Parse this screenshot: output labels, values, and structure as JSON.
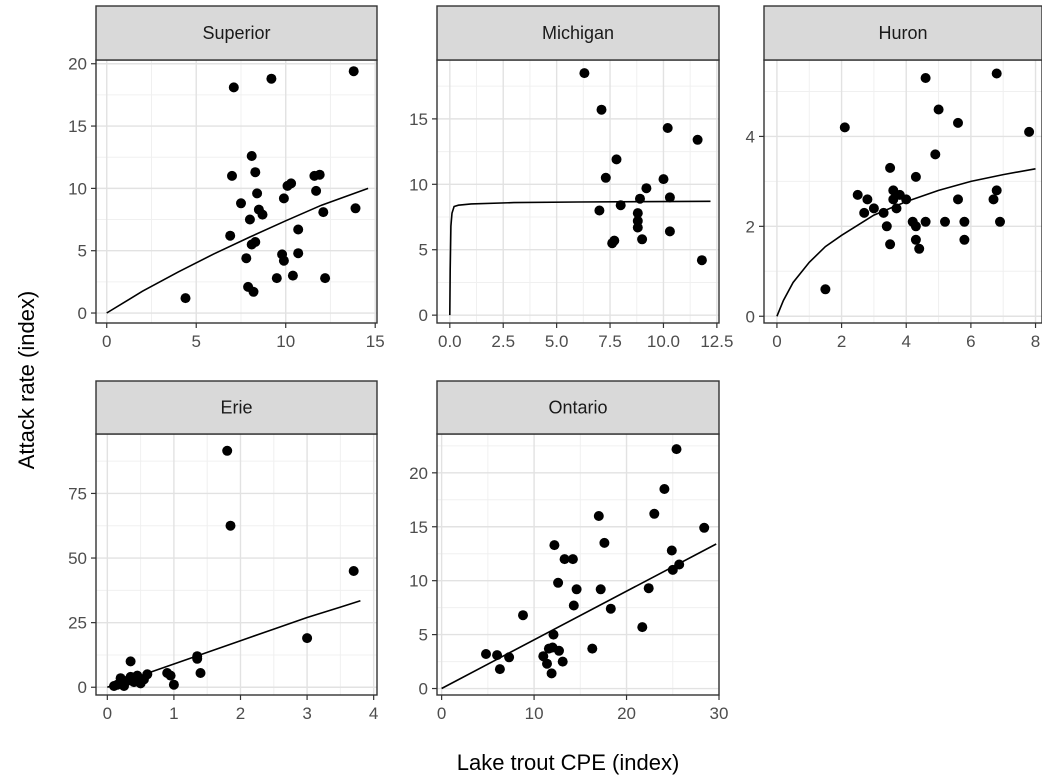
{
  "chart_data": {
    "type": "scatter",
    "layout": "facet-wrap",
    "xlabel": "Lake trout CPE (index)",
    "ylabel": "Attack rate (index)",
    "panels": [
      {
        "name": "Superior",
        "xlim": [
          -0.6,
          15.1
        ],
        "ylim": [
          -0.8,
          20.3
        ],
        "xticks": [
          {
            "v": 0,
            "label": "0"
          },
          {
            "v": 5,
            "label": "5"
          },
          {
            "v": 10,
            "label": "10"
          },
          {
            "v": 15,
            "label": "15"
          }
        ],
        "yticks": [
          {
            "v": 0,
            "label": "0"
          },
          {
            "v": 5,
            "label": "5"
          },
          {
            "v": 10,
            "label": "10"
          },
          {
            "v": 15,
            "label": "15"
          },
          {
            "v": 20,
            "label": "20"
          }
        ],
        "points": [
          [
            4.4,
            1.2
          ],
          [
            6.9,
            6.2
          ],
          [
            7.0,
            11.0
          ],
          [
            7.1,
            18.1
          ],
          [
            7.5,
            8.8
          ],
          [
            7.8,
            4.4
          ],
          [
            7.9,
            2.1
          ],
          [
            8.0,
            7.5
          ],
          [
            8.1,
            12.6
          ],
          [
            8.1,
            5.5
          ],
          [
            8.2,
            1.7
          ],
          [
            8.3,
            11.3
          ],
          [
            8.3,
            5.7
          ],
          [
            8.4,
            9.6
          ],
          [
            8.5,
            8.3
          ],
          [
            8.7,
            7.9
          ],
          [
            9.2,
            18.8
          ],
          [
            9.5,
            2.8
          ],
          [
            9.8,
            4.7
          ],
          [
            9.9,
            4.2
          ],
          [
            9.9,
            9.2
          ],
          [
            10.1,
            10.2
          ],
          [
            10.3,
            10.4
          ],
          [
            10.4,
            3.0
          ],
          [
            10.7,
            6.7
          ],
          [
            10.7,
            4.8
          ],
          [
            11.6,
            11.0
          ],
          [
            11.7,
            9.8
          ],
          [
            11.9,
            11.1
          ],
          [
            12.1,
            8.1
          ],
          [
            12.2,
            2.8
          ],
          [
            13.8,
            19.4
          ],
          [
            13.9,
            8.4
          ]
        ],
        "curve": [
          [
            0,
            0
          ],
          [
            2,
            1.75
          ],
          [
            4,
            3.3
          ],
          [
            6,
            4.75
          ],
          [
            8,
            6.1
          ],
          [
            10,
            7.4
          ],
          [
            12,
            8.65
          ],
          [
            14.6,
            10.0
          ]
        ]
      },
      {
        "name": "Michigan",
        "xlim": [
          -0.6,
          12.6
        ],
        "ylim": [
          -0.6,
          19.5
        ],
        "xticks": [
          {
            "v": 0,
            "label": "0.0"
          },
          {
            "v": 2.5,
            "label": "2.5"
          },
          {
            "v": 5,
            "label": "5.0"
          },
          {
            "v": 7.5,
            "label": "7.5"
          },
          {
            "v": 10,
            "label": "10.0"
          },
          {
            "v": 12.5,
            "label": "12.5"
          }
        ],
        "yticks": [
          {
            "v": 0,
            "label": "0"
          },
          {
            "v": 5,
            "label": "5"
          },
          {
            "v": 10,
            "label": "10"
          },
          {
            "v": 15,
            "label": "15"
          }
        ],
        "points": [
          [
            6.3,
            18.5
          ],
          [
            7.0,
            8.0
          ],
          [
            7.1,
            15.7
          ],
          [
            7.3,
            10.5
          ],
          [
            7.6,
            5.5
          ],
          [
            7.7,
            5.7
          ],
          [
            7.8,
            11.9
          ],
          [
            8.0,
            8.4
          ],
          [
            8.8,
            7.2
          ],
          [
            8.8,
            6.7
          ],
          [
            8.8,
            7.8
          ],
          [
            8.9,
            8.9
          ],
          [
            9.0,
            5.8
          ],
          [
            9.2,
            9.7
          ],
          [
            10.0,
            10.4
          ],
          [
            10.2,
            14.3
          ],
          [
            10.3,
            9.0
          ],
          [
            10.3,
            6.4
          ],
          [
            11.6,
            13.4
          ],
          [
            11.8,
            4.2
          ]
        ],
        "curve": [
          [
            0,
            0
          ],
          [
            0.02,
            3.5
          ],
          [
            0.05,
            6.8
          ],
          [
            0.1,
            7.8
          ],
          [
            0.2,
            8.3
          ],
          [
            0.4,
            8.4
          ],
          [
            1.0,
            8.5
          ],
          [
            3.0,
            8.6
          ],
          [
            6.0,
            8.65
          ],
          [
            12.2,
            8.7
          ]
        ]
      },
      {
        "name": "Huron",
        "xlim": [
          -0.4,
          8.2
        ],
        "ylim": [
          -0.15,
          5.7
        ],
        "xticks": [
          {
            "v": 0,
            "label": "0"
          },
          {
            "v": 2,
            "label": "2"
          },
          {
            "v": 4,
            "label": "4"
          },
          {
            "v": 6,
            "label": "6"
          },
          {
            "v": 8,
            "label": "8"
          }
        ],
        "yticks": [
          {
            "v": 0,
            "label": "0"
          },
          {
            "v": 2,
            "label": "2"
          },
          {
            "v": 4,
            "label": "4"
          }
        ],
        "points": [
          [
            1.5,
            0.6
          ],
          [
            2.1,
            4.2
          ],
          [
            2.5,
            2.7
          ],
          [
            2.7,
            2.3
          ],
          [
            2.8,
            2.6
          ],
          [
            3.0,
            2.4
          ],
          [
            3.3,
            2.3
          ],
          [
            3.4,
            2.0
          ],
          [
            3.5,
            3.3
          ],
          [
            3.5,
            1.6
          ],
          [
            3.6,
            2.8
          ],
          [
            3.6,
            2.6
          ],
          [
            3.7,
            2.4
          ],
          [
            3.8,
            2.7
          ],
          [
            4.0,
            2.6
          ],
          [
            4.2,
            2.1
          ],
          [
            4.3,
            2.0
          ],
          [
            4.3,
            1.7
          ],
          [
            4.3,
            3.1
          ],
          [
            4.4,
            1.5
          ],
          [
            4.6,
            5.3
          ],
          [
            4.6,
            2.1
          ],
          [
            4.9,
            3.6
          ],
          [
            5.0,
            4.6
          ],
          [
            5.2,
            2.1
          ],
          [
            5.6,
            4.3
          ],
          [
            5.6,
            2.6
          ],
          [
            5.8,
            1.7
          ],
          [
            5.8,
            2.1
          ],
          [
            6.7,
            2.6
          ],
          [
            6.8,
            5.4
          ],
          [
            6.8,
            2.8
          ],
          [
            6.9,
            2.1
          ],
          [
            7.8,
            4.1
          ]
        ],
        "curve": [
          [
            0,
            0
          ],
          [
            0.2,
            0.35
          ],
          [
            0.5,
            0.75
          ],
          [
            1,
            1.2
          ],
          [
            1.5,
            1.55
          ],
          [
            2,
            1.8
          ],
          [
            3,
            2.25
          ],
          [
            4,
            2.55
          ],
          [
            5,
            2.8
          ],
          [
            6,
            3.0
          ],
          [
            7,
            3.15
          ],
          [
            8,
            3.28
          ]
        ]
      },
      {
        "name": "Erie",
        "xlim": [
          -0.17,
          4.05
        ],
        "ylim": [
          -3.0,
          98.0
        ],
        "xticks": [
          {
            "v": 0,
            "label": "0"
          },
          {
            "v": 1,
            "label": "1"
          },
          {
            "v": 2,
            "label": "2"
          },
          {
            "v": 3,
            "label": "3"
          },
          {
            "v": 4,
            "label": "4"
          }
        ],
        "yticks": [
          {
            "v": 0,
            "label": "0"
          },
          {
            "v": 25,
            "label": "25"
          },
          {
            "v": 50,
            "label": "50"
          },
          {
            "v": 75,
            "label": "75"
          }
        ],
        "points": [
          [
            0.1,
            0.5
          ],
          [
            0.15,
            1.0
          ],
          [
            0.2,
            3.5
          ],
          [
            0.25,
            0.5
          ],
          [
            0.3,
            2.5
          ],
          [
            0.35,
            4.0
          ],
          [
            0.35,
            10.0
          ],
          [
            0.4,
            2.0
          ],
          [
            0.45,
            4.5
          ],
          [
            0.5,
            1.5
          ],
          [
            0.55,
            3.0
          ],
          [
            0.6,
            5.0
          ],
          [
            0.9,
            5.5
          ],
          [
            0.95,
            4.5
          ],
          [
            1.0,
            1.0
          ],
          [
            1.35,
            12.0
          ],
          [
            1.35,
            11.0
          ],
          [
            1.4,
            5.5
          ],
          [
            1.8,
            91.5
          ],
          [
            1.85,
            62.5
          ],
          [
            3.0,
            19.0
          ],
          [
            3.7,
            45.0
          ]
        ],
        "curve": [
          [
            0,
            0
          ],
          [
            0.5,
            4.5
          ],
          [
            1,
            9
          ],
          [
            1.5,
            13.5
          ],
          [
            2,
            18
          ],
          [
            2.5,
            22.5
          ],
          [
            3,
            27
          ],
          [
            3.5,
            31
          ],
          [
            3.8,
            33.5
          ]
        ]
      },
      {
        "name": "Ontario",
        "xlim": [
          -0.5,
          30.0
        ],
        "ylim": [
          -0.6,
          23.6
        ],
        "xticks": [
          {
            "v": 0,
            "label": "0"
          },
          {
            "v": 10,
            "label": "10"
          },
          {
            "v": 20,
            "label": "20"
          },
          {
            "v": 30,
            "label": "30"
          }
        ],
        "yticks": [
          {
            "v": 0,
            "label": "0"
          },
          {
            "v": 5,
            "label": "5"
          },
          {
            "v": 10,
            "label": "10"
          },
          {
            "v": 15,
            "label": "15"
          },
          {
            "v": 20,
            "label": "20"
          }
        ],
        "points": [
          [
            4.8,
            3.2
          ],
          [
            6.0,
            3.1
          ],
          [
            6.3,
            1.8
          ],
          [
            7.3,
            2.9
          ],
          [
            8.8,
            6.8
          ],
          [
            11.0,
            3.0
          ],
          [
            11.4,
            2.3
          ],
          [
            11.6,
            3.7
          ],
          [
            11.9,
            1.4
          ],
          [
            12.0,
            3.8
          ],
          [
            12.1,
            5.0
          ],
          [
            12.2,
            13.3
          ],
          [
            12.6,
            9.8
          ],
          [
            12.7,
            3.5
          ],
          [
            13.1,
            2.5
          ],
          [
            13.3,
            12.0
          ],
          [
            14.2,
            12.0
          ],
          [
            14.3,
            7.7
          ],
          [
            14.6,
            9.2
          ],
          [
            16.3,
            3.7
          ],
          [
            17.0,
            16.0
          ],
          [
            17.2,
            9.2
          ],
          [
            17.6,
            13.5
          ],
          [
            18.3,
            7.4
          ],
          [
            21.7,
            5.7
          ],
          [
            22.4,
            9.3
          ],
          [
            23.0,
            16.2
          ],
          [
            24.1,
            18.5
          ],
          [
            24.9,
            12.8
          ],
          [
            25.0,
            11.0
          ],
          [
            25.4,
            22.2
          ],
          [
            25.7,
            11.5
          ],
          [
            28.4,
            14.9
          ]
        ],
        "curve": [
          [
            0,
            0
          ],
          [
            29.7,
            13.4
          ]
        ]
      }
    ]
  }
}
